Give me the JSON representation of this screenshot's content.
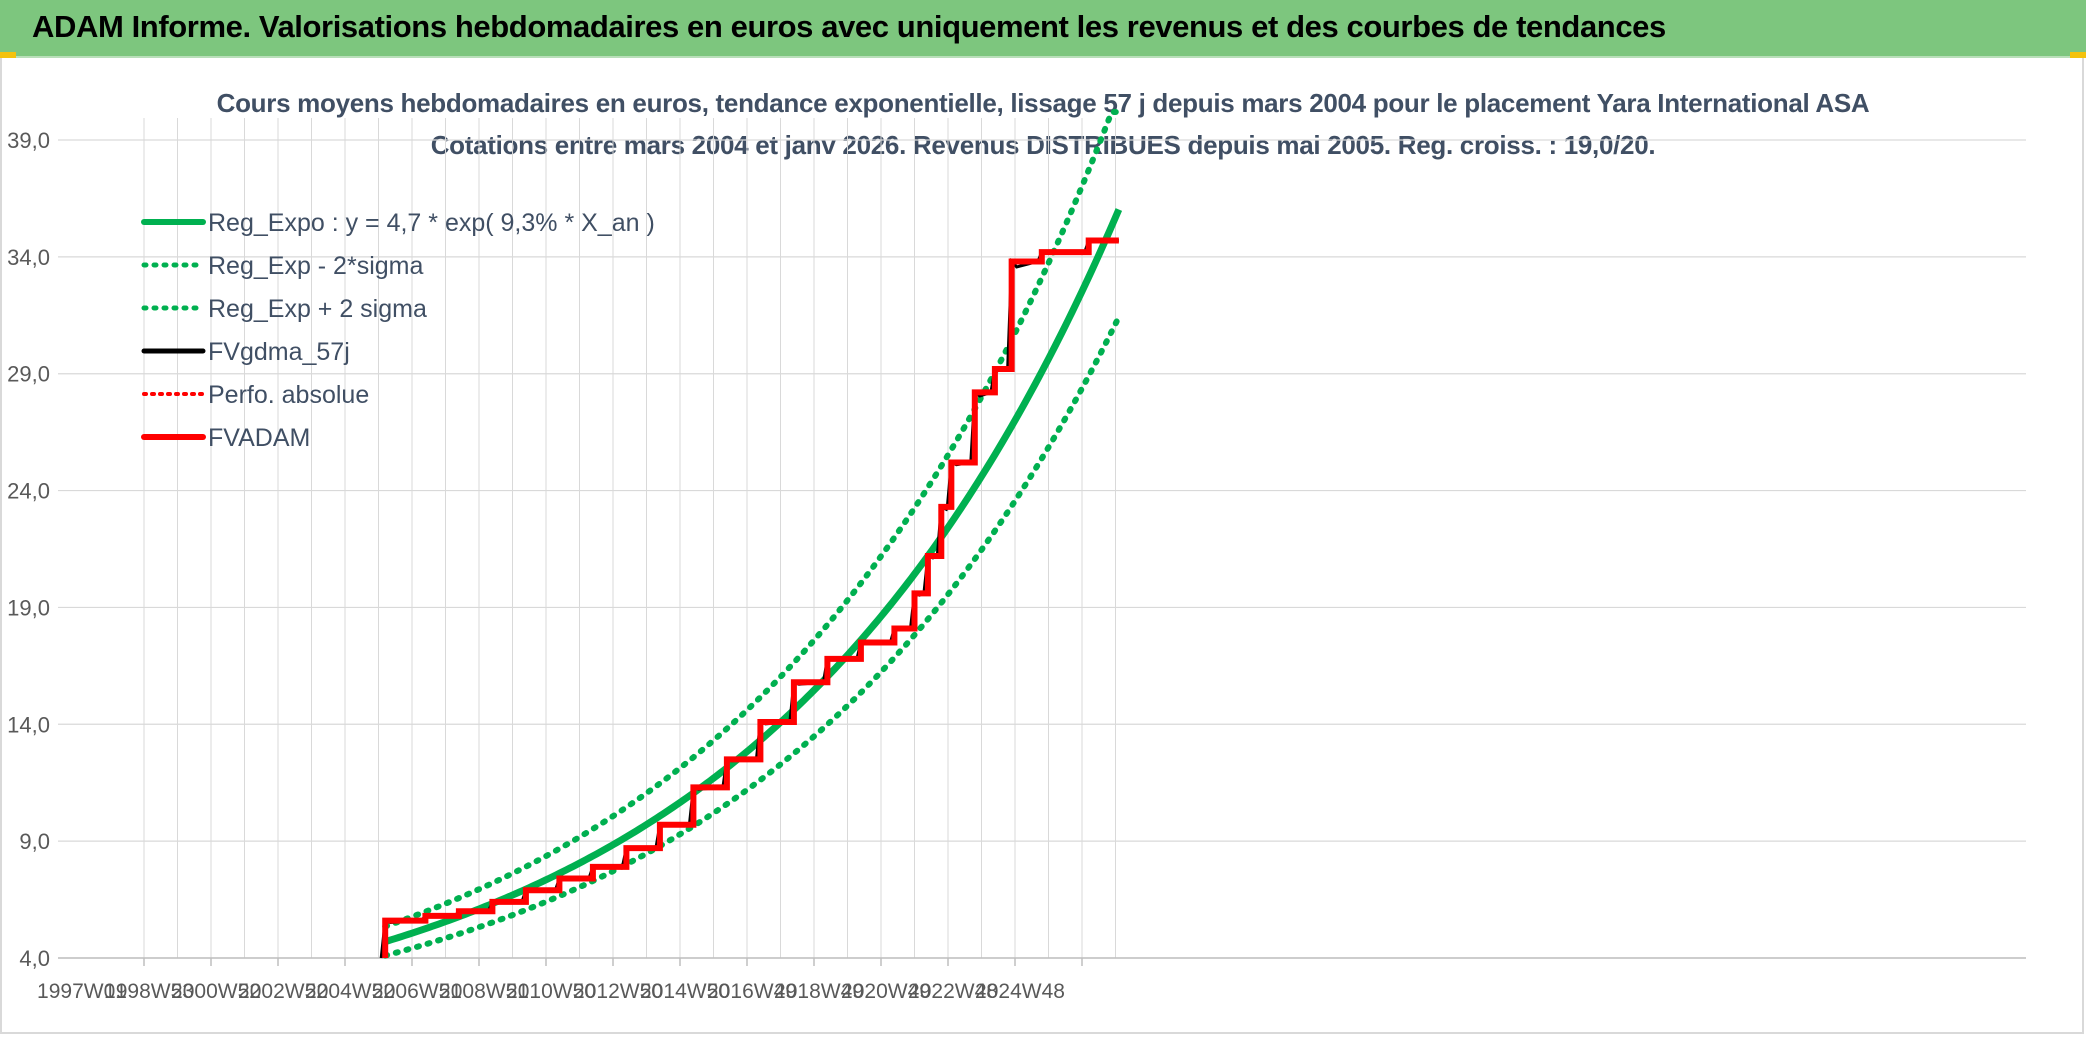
{
  "banner": {
    "title": "ADAM Informe. Valorisations hebdomadaires en euros avec uniquement les revenus et des courbes de tendances"
  },
  "colors": {
    "banner_bg": "#7dc67e",
    "trend": "#00b050",
    "fvadam": "#ff0000",
    "fvgdma": "#000000",
    "grid": "#d9d9d9",
    "axis_text": "#595959",
    "title_text": "#404f64"
  },
  "chart_data": {
    "type": "line",
    "title": "Cours moyens hebdomadaires en euros, tendance exponentielle, lissage 57 j depuis mars 2004 pour le placement Yara International ASA",
    "subtitle": "Cotations entre mars 2004 et janv 2026. Revenus DISTRIBUES depuis mai 2005. Reg. croiss. : 19,0/20.",
    "xlabel": "",
    "ylabel": "",
    "x_ticks": [
      "1997W01",
      "1998W53",
      "2000W52",
      "2002W52",
      "2004W52",
      "2006W51",
      "2008W51",
      "2010W50",
      "2012W50",
      "2014W50",
      "2016W49",
      "2018W49",
      "2020W49",
      "2022W48",
      "2024W48"
    ],
    "x_range": [
      1997.0,
      2026.1
    ],
    "y_ticks": [
      "4,0",
      "9,0",
      "14,0",
      "19,0",
      "24,0",
      "29,0",
      "34,0",
      "39,0"
    ],
    "ylim": [
      4.0,
      41.0
    ],
    "grid": true,
    "legend_position": "top-left",
    "legend": [
      {
        "label": "Reg_Expo : y = 4,7 * exp( 9,3% *  X_an )",
        "style": "solid-green"
      },
      {
        "label": "Reg_Exp - 2*sigma",
        "style": "dotted-green"
      },
      {
        "label": "Reg_Exp + 2 sigma",
        "style": "dotted-green"
      },
      {
        "label": "FVgdma_57j",
        "style": "solid-black"
      },
      {
        "label": "Perfo. absolue",
        "style": "dotted-red"
      },
      {
        "label": "FVADAM",
        "style": "solid-red"
      }
    ],
    "series": [
      {
        "name": "Reg_Expo : y = 4,7 * exp( 9,3% *  X_an )",
        "function": "exponential",
        "start": 2004.2,
        "end": 2026.1,
        "x0": 2004.2,
        "a": 4.7,
        "b": 0.093
      },
      {
        "name": "Reg_Exp - 2*sigma",
        "function": "exponential",
        "start": 2004.2,
        "end": 2026.1,
        "x0": 2004.2,
        "a": 4.1,
        "b": 0.093
      },
      {
        "name": "Reg_Exp + 2 sigma",
        "function": "exponential",
        "start": 2004.2,
        "end": 2026.1,
        "x0": 2004.2,
        "a": 5.35,
        "b": 0.093
      },
      {
        "name": "FVADAM",
        "steps": [
          [
            2004.2,
            4.0
          ],
          [
            2004.2,
            5.6
          ],
          [
            2005.4,
            5.8
          ],
          [
            2006.4,
            6.0
          ],
          [
            2007.4,
            6.4
          ],
          [
            2008.4,
            6.9
          ],
          [
            2009.4,
            7.4
          ],
          [
            2010.4,
            7.9
          ],
          [
            2011.4,
            8.7
          ],
          [
            2012.4,
            9.7
          ],
          [
            2013.4,
            11.3
          ],
          [
            2014.4,
            12.5
          ],
          [
            2015.4,
            14.1
          ],
          [
            2016.4,
            15.8
          ],
          [
            2017.4,
            16.8
          ],
          [
            2018.4,
            17.5
          ],
          [
            2019.4,
            18.1
          ],
          [
            2020.0,
            19.6
          ],
          [
            2020.4,
            21.2
          ],
          [
            2020.8,
            23.3
          ],
          [
            2021.1,
            25.2
          ],
          [
            2021.8,
            28.2
          ],
          [
            2022.4,
            29.2
          ],
          [
            2022.9,
            33.8
          ],
          [
            2023.8,
            34.2
          ],
          [
            2025.2,
            34.7
          ],
          [
            2026.1,
            34.7
          ]
        ]
      }
    ]
  }
}
